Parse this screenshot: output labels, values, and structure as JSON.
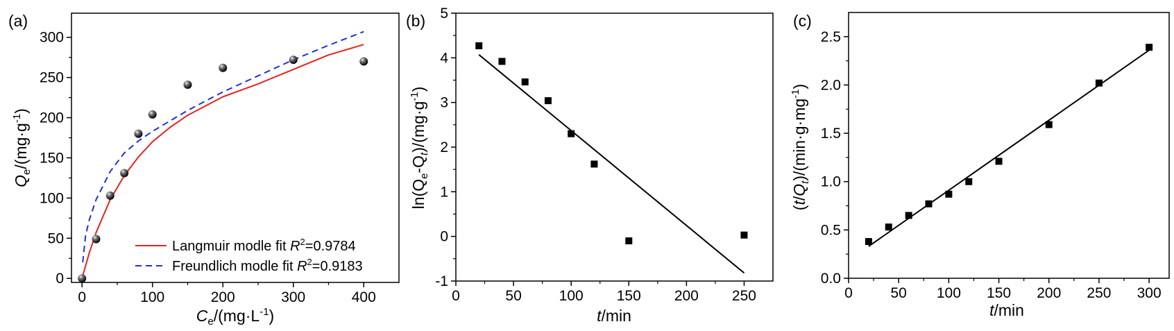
{
  "chart_data": [
    {
      "type": "scatter",
      "panel_label": "(a)",
      "xlabel": {
        "main": "C",
        "sub": "e",
        "rest": "/(mg·L",
        "sup": "-1",
        "end": ")"
      },
      "ylabel": {
        "main": "Q",
        "sub": "e",
        "rest": "/(mg·g",
        "sup": "-1",
        "end": ")"
      },
      "xlim": [
        -15,
        450
      ],
      "ylim": [
        -5,
        330
      ],
      "xticks": [
        0,
        100,
        200,
        300,
        400
      ],
      "yticks": [
        0,
        50,
        100,
        150,
        200,
        250,
        300
      ],
      "series": [
        {
          "type": "scatter",
          "x": [
            0,
            20,
            40,
            60,
            80,
            100,
            150,
            200,
            300,
            400
          ],
          "y": [
            0,
            49,
            103,
            131,
            180,
            204,
            241,
            262,
            272,
            270
          ]
        },
        {
          "type": "line",
          "style": "solid",
          "color": "#e8221b",
          "name_parts": {
            "main": "Langmuir modle fit ",
            "ital": "R",
            "sup": "2",
            "end": "=0.9784"
          },
          "x": [
            0,
            10,
            20,
            40,
            60,
            80,
            100,
            125,
            150,
            200,
            250,
            300,
            350,
            400
          ],
          "y": [
            0,
            31,
            57,
            98,
            128,
            151,
            170,
            188,
            203,
            226,
            242,
            260,
            278,
            291
          ]
        },
        {
          "type": "line",
          "style": "dashed",
          "color": "#1f2fd6",
          "name_parts": {
            "main": "Freundlich modle fit ",
            "ital": "R",
            "sup": "2",
            "end": "=0.9183"
          },
          "x": [
            1,
            5,
            10,
            20,
            40,
            60,
            80,
            100,
            150,
            200,
            250,
            300,
            350,
            400
          ],
          "y": [
            20,
            53,
            72,
            98,
            133,
            156,
            171,
            183,
            209,
            232,
            252,
            272,
            290,
            307
          ]
        }
      ],
      "legend": "bottom-right"
    },
    {
      "type": "scatter",
      "panel_label": "(b)",
      "xlabel": {
        "ital": "t",
        "rest": "/min"
      },
      "ylabel": {
        "pre": "ln(Q",
        "sub1": "e",
        "mid": "-Q",
        "sub2": "t",
        "end": ")/(mg·g",
        "sup": "-1",
        "end2": ")"
      },
      "xlim": [
        0,
        275
      ],
      "ylim": [
        -1,
        5
      ],
      "xticks": [
        0,
        50,
        100,
        150,
        200,
        250
      ],
      "yticks": [
        -1,
        0,
        1,
        2,
        3,
        4,
        5
      ],
      "series": [
        {
          "type": "scatter",
          "x": [
            20,
            40,
            60,
            80,
            100,
            120,
            150,
            250
          ],
          "y": [
            4.27,
            3.92,
            3.46,
            3.04,
            2.3,
            1.62,
            -0.1,
            0.03
          ]
        },
        {
          "type": "line",
          "x": [
            20,
            250
          ],
          "y": [
            4.07,
            -0.82
          ]
        }
      ]
    },
    {
      "type": "scatter",
      "panel_label": "(c)",
      "xlabel": {
        "ital": "t",
        "rest": "/min"
      },
      "ylabel": {
        "pre": "(",
        "ital1": "t",
        "mid": "/",
        "ital2": "Q",
        "sub": "t",
        "end": ")/(min·g·mg",
        "sup": "-1",
        "end2": ")"
      },
      "xlim": [
        0,
        320
      ],
      "ylim": [
        0,
        2.75
      ],
      "xticks": [
        0,
        50,
        100,
        150,
        200,
        250,
        300
      ],
      "yticks": [
        "0.0",
        "0.5",
        "1.0",
        "1.5",
        "2.0",
        "2.5"
      ],
      "series": [
        {
          "type": "scatter",
          "x": [
            20,
            40,
            60,
            80,
            100,
            120,
            150,
            200,
            250,
            300
          ],
          "y": [
            0.38,
            0.53,
            0.65,
            0.77,
            0.87,
            1.0,
            1.21,
            1.59,
            2.02,
            2.39
          ]
        },
        {
          "type": "line",
          "x": [
            20,
            300
          ],
          "y": [
            0.33,
            2.36
          ]
        }
      ]
    }
  ]
}
